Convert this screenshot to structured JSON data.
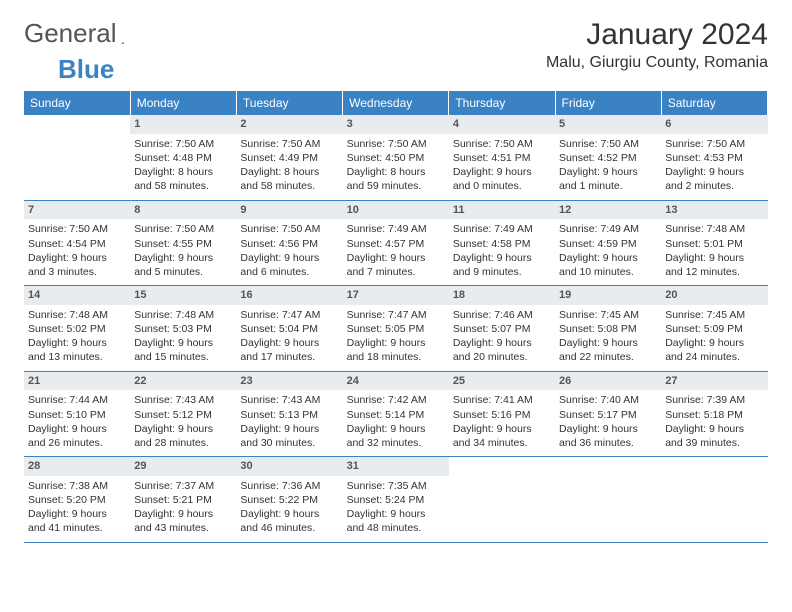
{
  "brand": {
    "part1": "General",
    "part2": "Blue"
  },
  "title": "January 2024",
  "location": "Malu, Giurgiu County, Romania",
  "header_bg": "#3b82c4",
  "header_fg": "#ffffff",
  "daynum_bg": "#e9ecef",
  "border_color": "#3b82c4",
  "dayHeaders": [
    "Sunday",
    "Monday",
    "Tuesday",
    "Wednesday",
    "Thursday",
    "Friday",
    "Saturday"
  ],
  "weeks": [
    [
      {
        "n": "",
        "sr": "",
        "ss": "",
        "d1": "",
        "d2": ""
      },
      {
        "n": "1",
        "sr": "Sunrise: 7:50 AM",
        "ss": "Sunset: 4:48 PM",
        "d1": "Daylight: 8 hours",
        "d2": "and 58 minutes."
      },
      {
        "n": "2",
        "sr": "Sunrise: 7:50 AM",
        "ss": "Sunset: 4:49 PM",
        "d1": "Daylight: 8 hours",
        "d2": "and 58 minutes."
      },
      {
        "n": "3",
        "sr": "Sunrise: 7:50 AM",
        "ss": "Sunset: 4:50 PM",
        "d1": "Daylight: 8 hours",
        "d2": "and 59 minutes."
      },
      {
        "n": "4",
        "sr": "Sunrise: 7:50 AM",
        "ss": "Sunset: 4:51 PM",
        "d1": "Daylight: 9 hours",
        "d2": "and 0 minutes."
      },
      {
        "n": "5",
        "sr": "Sunrise: 7:50 AM",
        "ss": "Sunset: 4:52 PM",
        "d1": "Daylight: 9 hours",
        "d2": "and 1 minute."
      },
      {
        "n": "6",
        "sr": "Sunrise: 7:50 AM",
        "ss": "Sunset: 4:53 PM",
        "d1": "Daylight: 9 hours",
        "d2": "and 2 minutes."
      }
    ],
    [
      {
        "n": "7",
        "sr": "Sunrise: 7:50 AM",
        "ss": "Sunset: 4:54 PM",
        "d1": "Daylight: 9 hours",
        "d2": "and 3 minutes."
      },
      {
        "n": "8",
        "sr": "Sunrise: 7:50 AM",
        "ss": "Sunset: 4:55 PM",
        "d1": "Daylight: 9 hours",
        "d2": "and 5 minutes."
      },
      {
        "n": "9",
        "sr": "Sunrise: 7:50 AM",
        "ss": "Sunset: 4:56 PM",
        "d1": "Daylight: 9 hours",
        "d2": "and 6 minutes."
      },
      {
        "n": "10",
        "sr": "Sunrise: 7:49 AM",
        "ss": "Sunset: 4:57 PM",
        "d1": "Daylight: 9 hours",
        "d2": "and 7 minutes."
      },
      {
        "n": "11",
        "sr": "Sunrise: 7:49 AM",
        "ss": "Sunset: 4:58 PM",
        "d1": "Daylight: 9 hours",
        "d2": "and 9 minutes."
      },
      {
        "n": "12",
        "sr": "Sunrise: 7:49 AM",
        "ss": "Sunset: 4:59 PM",
        "d1": "Daylight: 9 hours",
        "d2": "and 10 minutes."
      },
      {
        "n": "13",
        "sr": "Sunrise: 7:48 AM",
        "ss": "Sunset: 5:01 PM",
        "d1": "Daylight: 9 hours",
        "d2": "and 12 minutes."
      }
    ],
    [
      {
        "n": "14",
        "sr": "Sunrise: 7:48 AM",
        "ss": "Sunset: 5:02 PM",
        "d1": "Daylight: 9 hours",
        "d2": "and 13 minutes."
      },
      {
        "n": "15",
        "sr": "Sunrise: 7:48 AM",
        "ss": "Sunset: 5:03 PM",
        "d1": "Daylight: 9 hours",
        "d2": "and 15 minutes."
      },
      {
        "n": "16",
        "sr": "Sunrise: 7:47 AM",
        "ss": "Sunset: 5:04 PM",
        "d1": "Daylight: 9 hours",
        "d2": "and 17 minutes."
      },
      {
        "n": "17",
        "sr": "Sunrise: 7:47 AM",
        "ss": "Sunset: 5:05 PM",
        "d1": "Daylight: 9 hours",
        "d2": "and 18 minutes."
      },
      {
        "n": "18",
        "sr": "Sunrise: 7:46 AM",
        "ss": "Sunset: 5:07 PM",
        "d1": "Daylight: 9 hours",
        "d2": "and 20 minutes."
      },
      {
        "n": "19",
        "sr": "Sunrise: 7:45 AM",
        "ss": "Sunset: 5:08 PM",
        "d1": "Daylight: 9 hours",
        "d2": "and 22 minutes."
      },
      {
        "n": "20",
        "sr": "Sunrise: 7:45 AM",
        "ss": "Sunset: 5:09 PM",
        "d1": "Daylight: 9 hours",
        "d2": "and 24 minutes."
      }
    ],
    [
      {
        "n": "21",
        "sr": "Sunrise: 7:44 AM",
        "ss": "Sunset: 5:10 PM",
        "d1": "Daylight: 9 hours",
        "d2": "and 26 minutes."
      },
      {
        "n": "22",
        "sr": "Sunrise: 7:43 AM",
        "ss": "Sunset: 5:12 PM",
        "d1": "Daylight: 9 hours",
        "d2": "and 28 minutes."
      },
      {
        "n": "23",
        "sr": "Sunrise: 7:43 AM",
        "ss": "Sunset: 5:13 PM",
        "d1": "Daylight: 9 hours",
        "d2": "and 30 minutes."
      },
      {
        "n": "24",
        "sr": "Sunrise: 7:42 AM",
        "ss": "Sunset: 5:14 PM",
        "d1": "Daylight: 9 hours",
        "d2": "and 32 minutes."
      },
      {
        "n": "25",
        "sr": "Sunrise: 7:41 AM",
        "ss": "Sunset: 5:16 PM",
        "d1": "Daylight: 9 hours",
        "d2": "and 34 minutes."
      },
      {
        "n": "26",
        "sr": "Sunrise: 7:40 AM",
        "ss": "Sunset: 5:17 PM",
        "d1": "Daylight: 9 hours",
        "d2": "and 36 minutes."
      },
      {
        "n": "27",
        "sr": "Sunrise: 7:39 AM",
        "ss": "Sunset: 5:18 PM",
        "d1": "Daylight: 9 hours",
        "d2": "and 39 minutes."
      }
    ],
    [
      {
        "n": "28",
        "sr": "Sunrise: 7:38 AM",
        "ss": "Sunset: 5:20 PM",
        "d1": "Daylight: 9 hours",
        "d2": "and 41 minutes."
      },
      {
        "n": "29",
        "sr": "Sunrise: 7:37 AM",
        "ss": "Sunset: 5:21 PM",
        "d1": "Daylight: 9 hours",
        "d2": "and 43 minutes."
      },
      {
        "n": "30",
        "sr": "Sunrise: 7:36 AM",
        "ss": "Sunset: 5:22 PM",
        "d1": "Daylight: 9 hours",
        "d2": "and 46 minutes."
      },
      {
        "n": "31",
        "sr": "Sunrise: 7:35 AM",
        "ss": "Sunset: 5:24 PM",
        "d1": "Daylight: 9 hours",
        "d2": "and 48 minutes."
      },
      {
        "n": "",
        "sr": "",
        "ss": "",
        "d1": "",
        "d2": ""
      },
      {
        "n": "",
        "sr": "",
        "ss": "",
        "d1": "",
        "d2": ""
      },
      {
        "n": "",
        "sr": "",
        "ss": "",
        "d1": "",
        "d2": ""
      }
    ]
  ]
}
